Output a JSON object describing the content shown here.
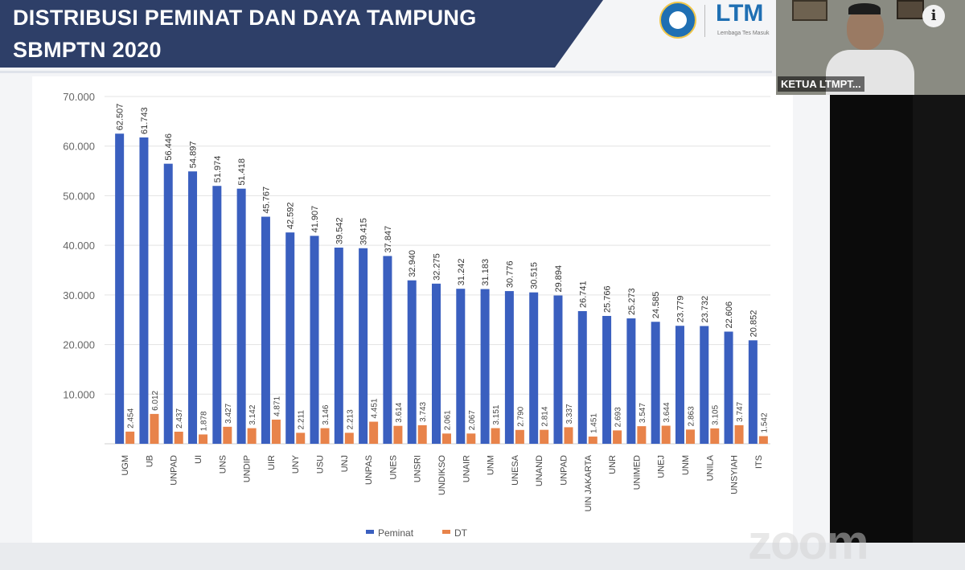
{
  "slide": {
    "title_line1": "DISTRIBUSI PEMINAT DAN DAYA TAMPUNG",
    "title_line2": "SBMPTN 2020",
    "logo_text": "LTM",
    "logo_tagline": "Lembaga Tes Masuk"
  },
  "webcam": {
    "label": "KETUA LTMPT..."
  },
  "watermark": "zoom",
  "colors": {
    "banner": "#2e3f68",
    "peminat": "#3a5fbf",
    "dt": "#e8834a"
  },
  "icons": {
    "info": "i"
  },
  "chart_data": {
    "type": "bar",
    "categories": [
      "UGM",
      "UB",
      "UNPAD",
      "UI",
      "UNS",
      "UNDIP",
      "UIR",
      "UNY",
      "USU",
      "UNJ",
      "UNPAS",
      "UNES",
      "UNSRI",
      "UNDIKSO",
      "UNAIR",
      "UNM",
      "UNESA",
      "UNAND",
      "UNPAD",
      "UIN JAKARTA",
      "UNR",
      "UNIMED",
      "UNEJ",
      "UNM",
      "UNILA",
      "UNSYIAH",
      "ITS"
    ],
    "series": [
      {
        "name": "Peminat",
        "values": [
          62507,
          61743,
          56446,
          54897,
          51974,
          51418,
          45767,
          42592,
          41907,
          39542,
          39415,
          37847,
          32940,
          32275,
          31242,
          31183,
          30776,
          30515,
          29894,
          26741,
          25766,
          25273,
          24585,
          23779,
          23732,
          22606,
          20852
        ]
      },
      {
        "name": "DT",
        "values": [
          2454,
          6012,
          2437,
          1878,
          3427,
          3142,
          4871,
          2211,
          3146,
          2213,
          4451,
          3614,
          3743,
          2061,
          2067,
          3151,
          2790,
          2814,
          3337,
          1451,
          2693,
          3547,
          3644,
          2863,
          3105,
          3747,
          1542
        ]
      }
    ],
    "value_labels": {
      "Peminat": [
        "62.507",
        "61.743",
        "56.446",
        "54.897",
        "51.974",
        "51.418",
        "45.767",
        "42.592",
        "41.907",
        "39.542",
        "39.415",
        "37.847",
        "32.940",
        "32.275",
        "31.242",
        "31.183",
        "30.776",
        "30.515",
        "29.894",
        "26.741",
        "25.766",
        "25.273",
        "24.585",
        "23.779",
        "23.732",
        "22.606",
        "20.852"
      ],
      "DT": [
        "2.454",
        "6.012",
        "2.437",
        "1.878",
        "3.427",
        "3.142",
        "4.871",
        "2.211",
        "3.146",
        "2.213",
        "4.451",
        "3.614",
        "3.743",
        "2.061",
        "2.067",
        "3.151",
        "2.790",
        "2.814",
        "3.337",
        "1.451",
        "2.693",
        "3.547",
        "3.644",
        "2.863",
        "3.105",
        "3.747",
        "1.542"
      ]
    },
    "y_ticks": [
      "70.000",
      "60.000",
      "50.000",
      "40.000",
      "30.000",
      "20.000",
      "10.000"
    ],
    "ylim": [
      0,
      70000
    ],
    "grid": true,
    "legend_position": "bottom",
    "legend": [
      "Peminat",
      "DT"
    ]
  }
}
